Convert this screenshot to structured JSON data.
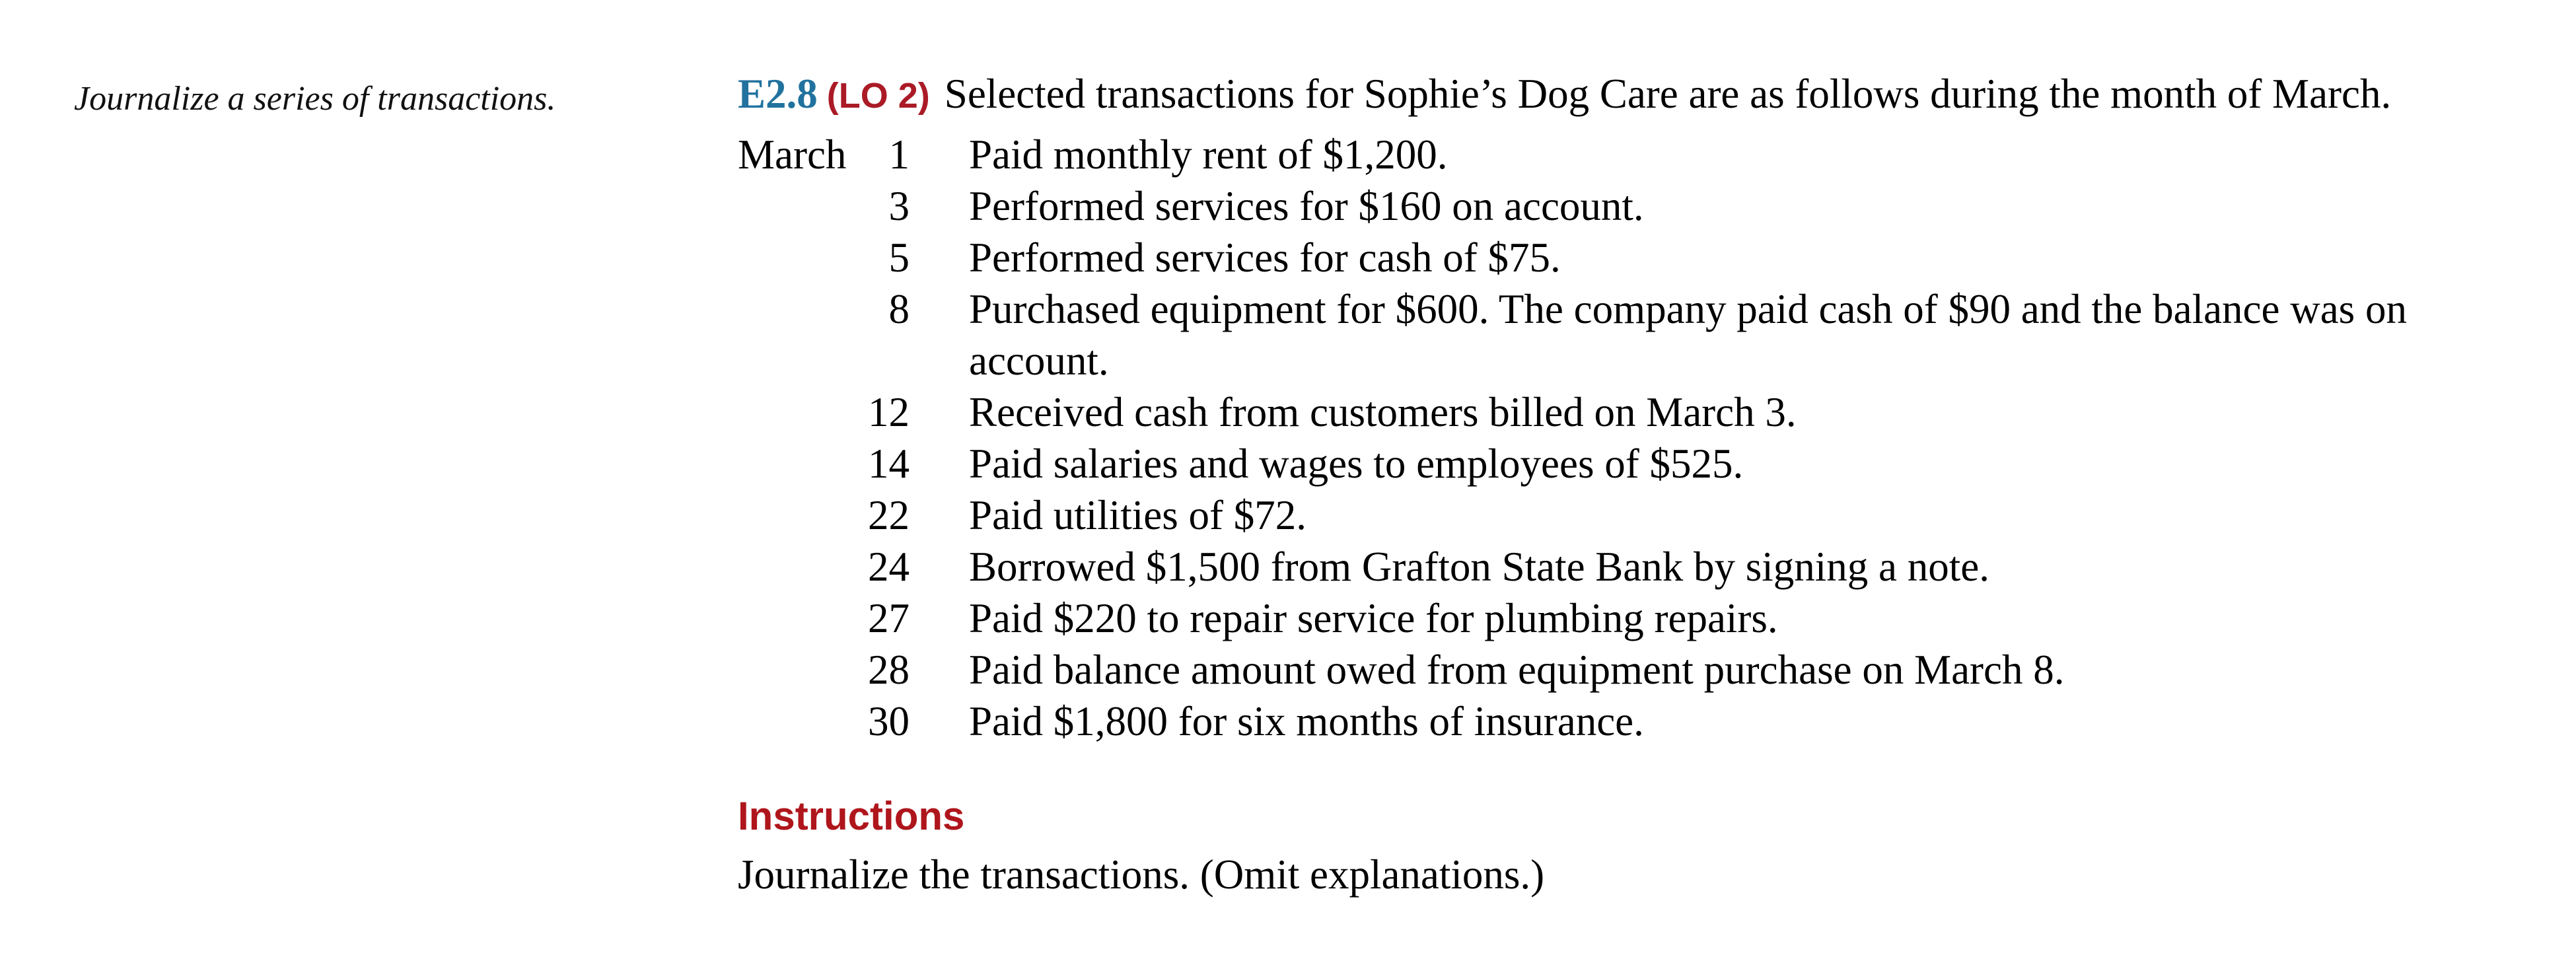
{
  "margin_note": "Journalize a series of transactions.",
  "exercise": {
    "code": "E2.8",
    "lo": "(LO 2)",
    "intro": "Selected transactions for Sophie’s Dog Care are as follows during the month of March."
  },
  "month_label": "March",
  "transactions": [
    {
      "day": "1",
      "text": "Paid monthly rent of $1,200."
    },
    {
      "day": "3",
      "text": "Performed services for $160 on account."
    },
    {
      "day": "5",
      "text": "Performed services for cash of $75."
    },
    {
      "day": "8",
      "text": "Purchased equipment for $600. The company paid cash of $90 and the balance was on account."
    },
    {
      "day": "12",
      "text": "Received cash from customers billed on March 3."
    },
    {
      "day": "14",
      "text": "Paid salaries and wages to employees of $525."
    },
    {
      "day": "22",
      "text": "Paid utilities of $72."
    },
    {
      "day": "24",
      "text": "Borrowed $1,500 from Grafton State Bank by signing a note."
    },
    {
      "day": "27",
      "text": "Paid $220 to repair service for plumbing repairs."
    },
    {
      "day": "28",
      "text": "Paid balance amount owed from equipment purchase on March 8."
    },
    {
      "day": "30",
      "text": "Paid $1,800 for six months of insurance."
    }
  ],
  "instructions": {
    "heading": "Instructions",
    "text": "Journalize the transactions. (Omit explanations.)"
  },
  "colors": {
    "exercise_code_blue": "#21729E",
    "lo_tag_red": "#AA1B26",
    "heading_red": "#AF161C",
    "body_text": "#000000",
    "background": "#FFFFFF"
  }
}
